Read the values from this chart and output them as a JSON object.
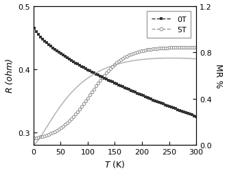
{
  "title": "",
  "xlabel": "T (K)",
  "ylabel_left": "R (ohm)",
  "ylabel_right": "MR %",
  "xlim": [
    0,
    300
  ],
  "ylim_left": [
    0.28,
    0.5
  ],
  "ylim_right": [
    0.0,
    1.2
  ],
  "yticks_left": [
    0.3,
    0.4,
    0.5
  ],
  "yticks_right": [
    0.0,
    0.4,
    0.8,
    1.2
  ],
  "xticks": [
    0,
    50,
    100,
    150,
    200,
    250,
    300
  ],
  "R0T_T0": 0.47,
  "R0T_T300": 0.325,
  "R5T_T0": 0.286,
  "R5T_T300": 0.435,
  "R5T_cross_T": 95,
  "MR_peak": 0.79,
  "MR_peak_T": 240,
  "color_0T": "#333333",
  "color_5T": "#999999",
  "legend_labels": [
    "0T",
    "5T"
  ],
  "background_color": "#ffffff"
}
